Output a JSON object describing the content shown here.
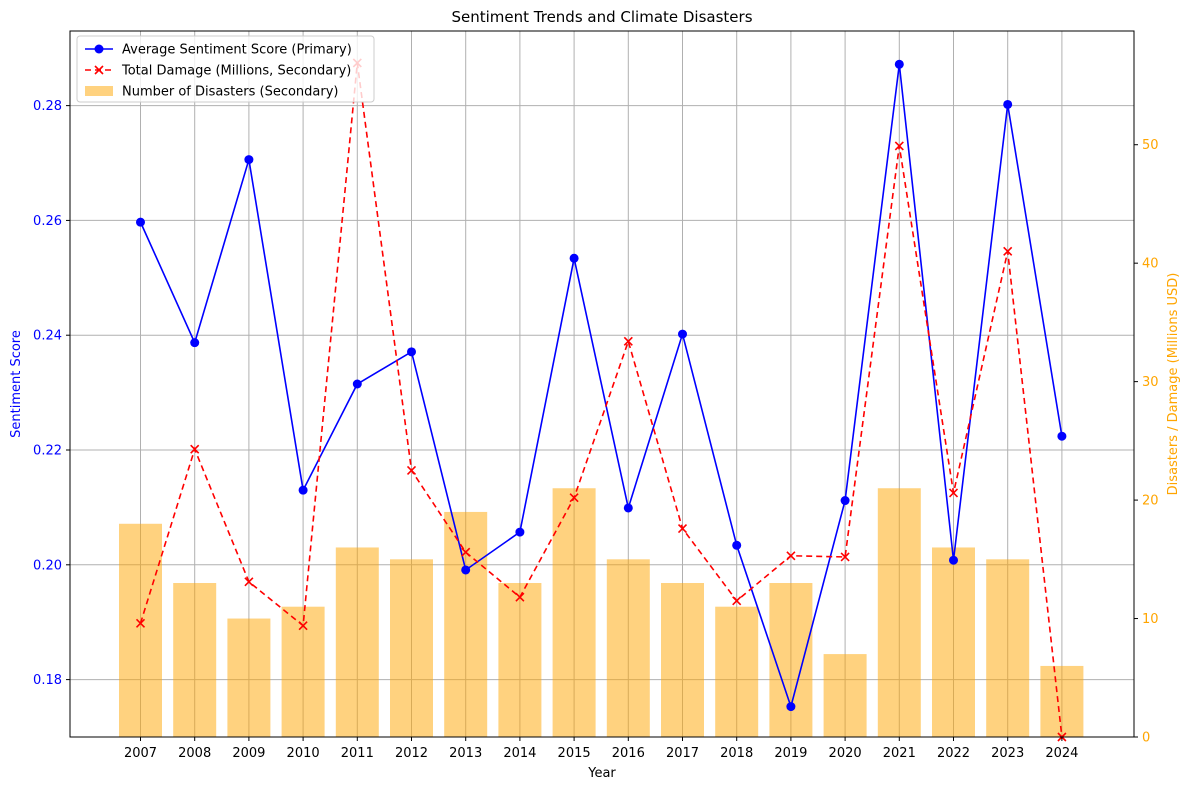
{
  "chart_data": {
    "type": "bar",
    "title": "Sentiment Trends and Climate Disasters",
    "xlabel": "Year",
    "ylabel": "Sentiment Score",
    "y2label": "Disasters / Damage (Millions USD)",
    "categories": [
      "2007",
      "2008",
      "2009",
      "2010",
      "2011",
      "2012",
      "2013",
      "2014",
      "2015",
      "2016",
      "2017",
      "2018",
      "2019",
      "2020",
      "2021",
      "2022",
      "2023",
      "2024"
    ],
    "ylim": [
      0.17,
      0.293
    ],
    "y2lim": [
      0,
      59.6
    ],
    "yticks": [
      "0.18",
      "0.20",
      "0.22",
      "0.24",
      "0.26",
      "0.28"
    ],
    "y2ticks": [
      "0",
      "10",
      "20",
      "30",
      "40",
      "50"
    ],
    "grid": true,
    "legend_position": "top-left",
    "series": [
      {
        "name": "Average Sentiment Score (Primary)",
        "kind": "line",
        "axis": "primary",
        "color": "#0000ff",
        "marker": "circle",
        "values": [
          0.2597,
          0.2387,
          0.2706,
          0.213,
          0.2315,
          0.2371,
          0.1991,
          0.2057,
          0.2534,
          0.2099,
          0.2402,
          0.2034,
          0.1753,
          0.2112,
          0.2872,
          0.2008,
          0.2802,
          0.2224
        ]
      },
      {
        "name": "Total Damage (Millions, Secondary)",
        "kind": "line",
        "axis": "secondary",
        "color": "#ff0000",
        "marker": "x",
        "dashed": true,
        "values": [
          9.6,
          24.3,
          13.1,
          9.4,
          56.9,
          22.5,
          15.6,
          11.8,
          20.2,
          33.4,
          17.6,
          11.5,
          15.3,
          15.2,
          49.9,
          20.6,
          41.0,
          0.0
        ]
      },
      {
        "name": "Number of Disasters (Secondary)",
        "kind": "bar",
        "axis": "secondary",
        "color": "#ffa500",
        "values": [
          18,
          13,
          10,
          11,
          16,
          15,
          19,
          13,
          21,
          15,
          13,
          11,
          13,
          7,
          21,
          16,
          15,
          6
        ]
      }
    ],
    "colors": {
      "primary_axis": "#0000ff",
      "secondary_axis": "#ffa500",
      "grid": "#b0b0b0"
    }
  }
}
